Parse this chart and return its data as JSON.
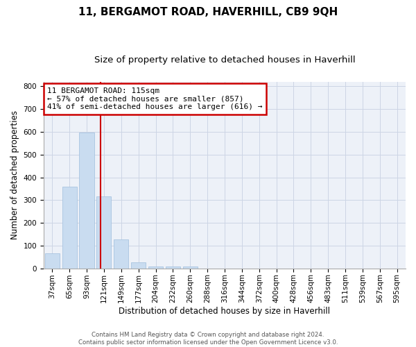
{
  "title": "11, BERGAMOT ROAD, HAVERHILL, CB9 9QH",
  "subtitle": "Size of property relative to detached houses in Haverhill",
  "xlabel": "Distribution of detached houses by size in Haverhill",
  "ylabel": "Number of detached properties",
  "footer_line1": "Contains HM Land Registry data © Crown copyright and database right 2024.",
  "footer_line2": "Contains public sector information licensed under the Open Government Licence v3.0.",
  "bar_values": [
    65,
    358,
    597,
    315,
    128,
    27,
    8,
    8,
    8,
    0,
    0,
    0,
    0,
    0,
    0,
    0,
    0,
    0,
    0,
    0,
    0
  ],
  "bar_labels": [
    "37sqm",
    "65sqm",
    "93sqm",
    "121sqm",
    "149sqm",
    "177sqm",
    "204sqm",
    "232sqm",
    "260sqm",
    "288sqm",
    "316sqm",
    "344sqm",
    "372sqm",
    "400sqm",
    "428sqm",
    "456sqm",
    "483sqm",
    "511sqm",
    "539sqm",
    "567sqm",
    "595sqm"
  ],
  "bar_color": "#c9dcf0",
  "bar_edge_color": "#a8c4e0",
  "grid_color": "#ccd5e5",
  "background_color": "#edf1f8",
  "vline_x": 2.82,
  "vline_color": "#cc0000",
  "annotation_line1": "11 BERGAMOT ROAD: 115sqm",
  "annotation_line2": "← 57% of detached houses are smaller (857)",
  "annotation_line3": "41% of semi-detached houses are larger (616) →",
  "annotation_box_color": "#cc0000",
  "ylim": [
    0,
    820
  ],
  "yticks": [
    0,
    100,
    200,
    300,
    400,
    500,
    600,
    700,
    800
  ],
  "title_fontsize": 11,
  "subtitle_fontsize": 9.5,
  "axis_label_fontsize": 8.5,
  "tick_fontsize": 7.5,
  "annotation_fontsize": 8
}
